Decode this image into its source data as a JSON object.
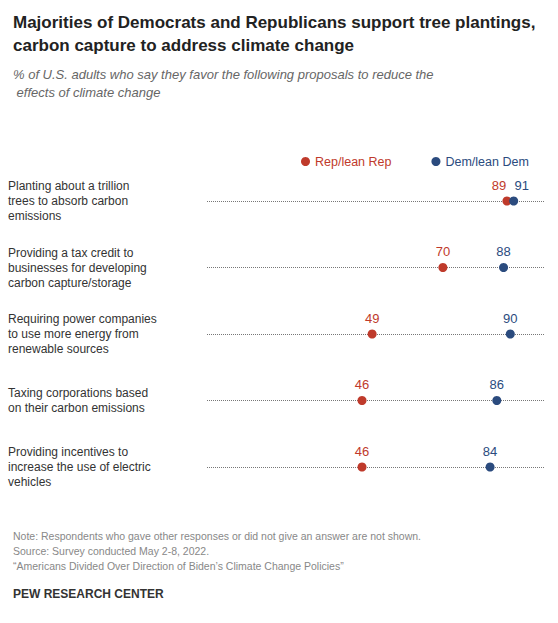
{
  "chart_data": {
    "type": "scatter",
    "orientation": "horizontal",
    "title": "Majorities of Democrats and Republicans support tree plantings, carbon capture to address climate change",
    "subtitle": "% of U.S. adults who say they favor the following proposals to reduce the effects of climate change",
    "categories": [
      "Planting about a trillion\ntrees to absorb carbon\nemissions",
      "Providing a tax credit to\nbusinesses for developing\ncarbon capture/storage",
      "Requiring power companies\nto use more energy from\nrenewable sources",
      "Taxing corporations based\non their carbon emissions",
      "Providing incentives to\nincrease the use of electric\nvehicles"
    ],
    "series": [
      {
        "name": "Rep/lean Rep",
        "color": "#bf3a2b",
        "values": [
          89,
          70,
          49,
          46,
          46
        ]
      },
      {
        "name": "Dem/lean Dem",
        "color": "#2b4b7e",
        "values": [
          91,
          88,
          90,
          86,
          84
        ]
      }
    ],
    "xlim": [
      0,
      100
    ],
    "tick_labels": "y",
    "grid": true,
    "legend": "top",
    "data_labels": true,
    "marker": "circle",
    "notes": [
      "Note: Respondents who gave other responses or did not give an answer are not shown.",
      "Source: Survey conducted May 2-8, 2022.",
      "“Americans Divided Over Direction of Biden’s Climate Change Policies”"
    ],
    "credit": "PEW RESEARCH CENTER"
  }
}
